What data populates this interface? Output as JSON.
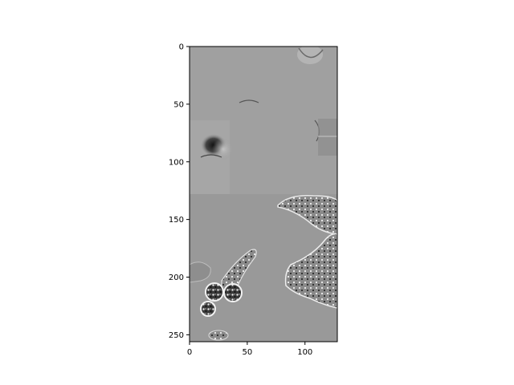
{
  "chart_data": {
    "type": "heatmap",
    "colormap": "gray",
    "title": "",
    "xlabel": "",
    "ylabel": "",
    "xlim": [
      0,
      128
    ],
    "ylim": [
      256,
      0
    ],
    "x_ticks": [
      0,
      50,
      100
    ],
    "y_ticks": [
      0,
      50,
      100,
      150,
      200,
      250
    ],
    "x_tick_labels": [
      "0",
      "50",
      "100"
    ],
    "y_tick_labels": [
      "0",
      "50",
      "100",
      "150",
      "200",
      "250"
    ],
    "grid": false
  }
}
